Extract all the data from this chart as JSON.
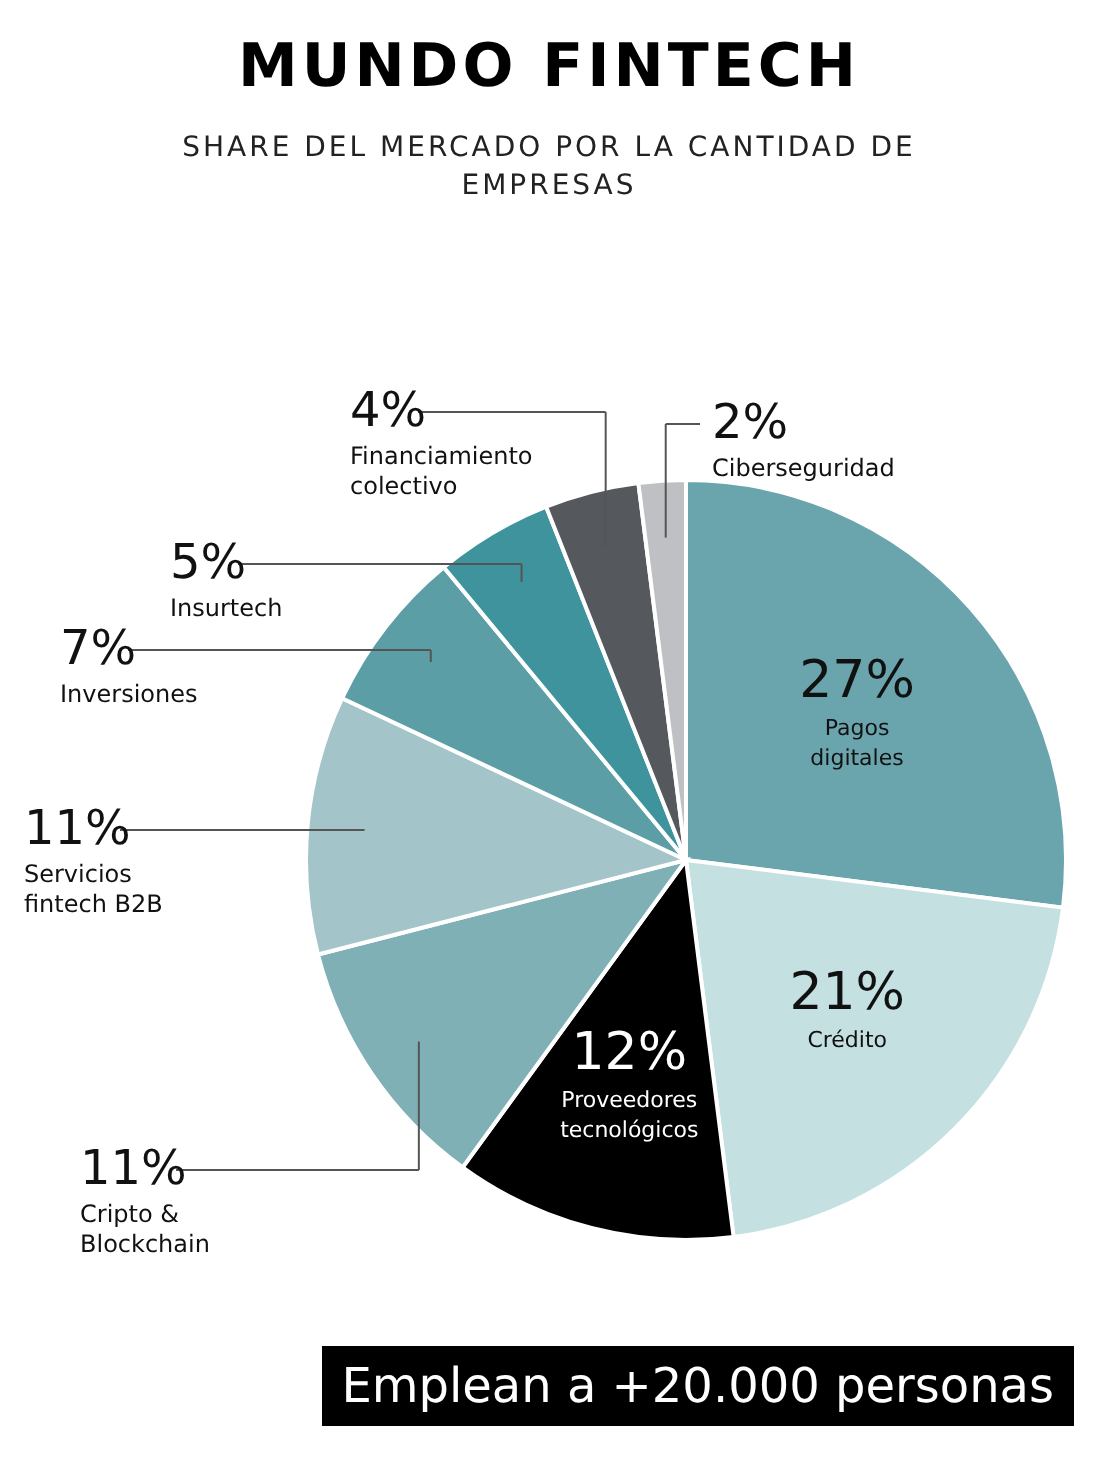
{
  "chart_data": {
    "type": "pie",
    "title": "MUNDO FINTECH",
    "subtitle": "SHARE DEL MERCADO POR LA CANTIDAD DE EMPRESAS",
    "categories": [
      "Pagos digitales",
      "Crédito",
      "Proveedores tecnológicos",
      "Cripto & Blockchain",
      "Servicios fintech B2B",
      "Inversiones",
      "Insurtech",
      "Financiamiento colectivo",
      "Ciberseguridad"
    ],
    "values": [
      27,
      21,
      12,
      11,
      11,
      7,
      5,
      4,
      2
    ],
    "value_labels": [
      "27%",
      "21%",
      "12%",
      "11%",
      "11%",
      "7%",
      "5%",
      "4%",
      "2%"
    ],
    "colors": [
      "#6aa5ae",
      "#c5e0e1",
      "#000000",
      "#7fb0b6",
      "#a3c4c9",
      "#5b9ea6",
      "#3e939c",
      "#55595d",
      "#bfc0c4"
    ],
    "annotations": [
      "Emplean a +20.000 personas"
    ]
  }
}
